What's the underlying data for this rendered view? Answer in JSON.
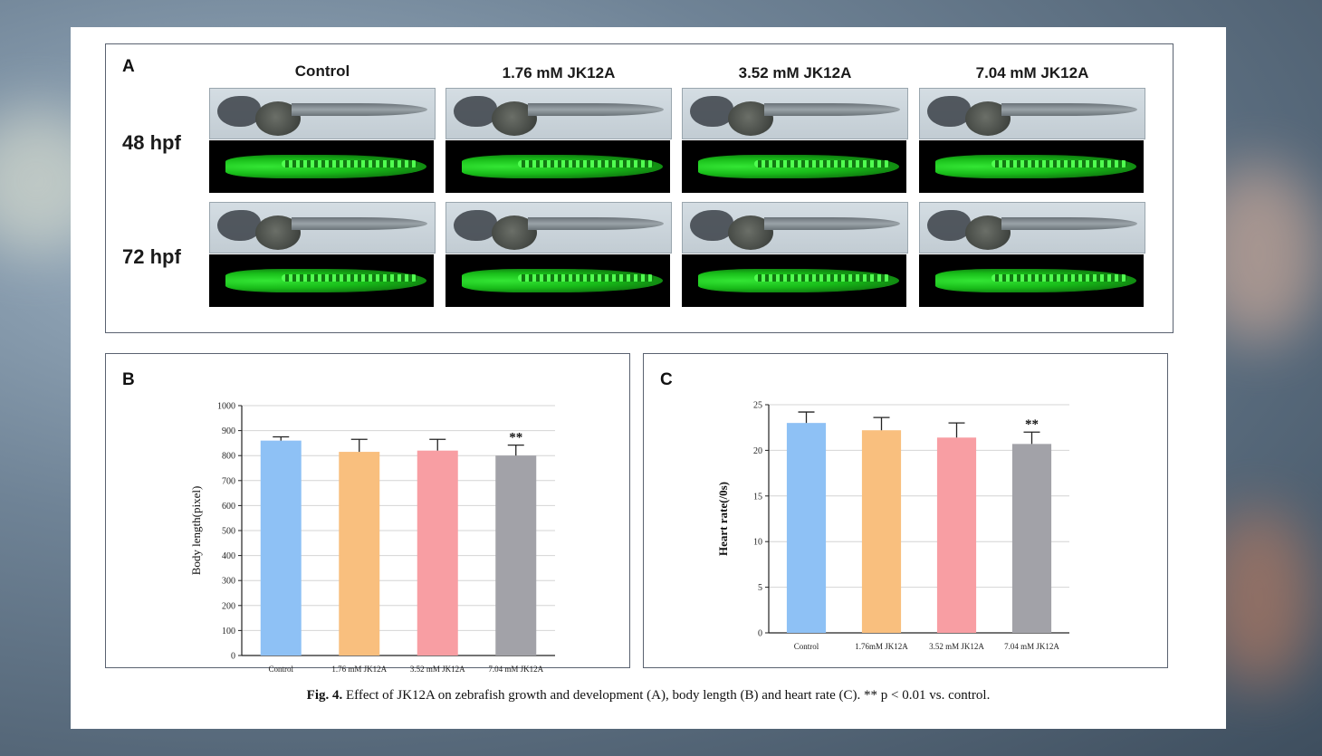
{
  "figure": {
    "panel_a": {
      "letter": "A",
      "columns": [
        "Control",
        "1.76 mM JK12A",
        "3.52 mM JK12A",
        "7.04 mM JK12A"
      ],
      "rows": [
        "48 hpf",
        "72 hpf"
      ]
    },
    "panel_b": {
      "letter": "B"
    },
    "panel_c": {
      "letter": "C"
    },
    "caption": {
      "label": "Fig. 4.",
      "text": "Effect of JK12A on zebrafish growth and development (A), body length (B) and heart rate (C). ** p < 0.01 vs. control."
    }
  },
  "chart_data": [
    {
      "type": "bar",
      "panel": "B",
      "categories": [
        "Control",
        "1.76 mM JK12A",
        "3.52 mM JK12A",
        "7.04 mM JK12A"
      ],
      "values": [
        860,
        815,
        820,
        800
      ],
      "errors": [
        15,
        50,
        45,
        42
      ],
      "significance": [
        "",
        "",
        "",
        "**"
      ],
      "colors": [
        "#8ec1f5",
        "#f9bf7e",
        "#f89ea3",
        "#a2a2a8"
      ],
      "xlabel": "",
      "ylabel": "Body length(pixel)",
      "ylim": [
        0,
        1000
      ],
      "yticks": [
        0,
        100,
        200,
        300,
        400,
        500,
        600,
        700,
        800,
        900,
        1000
      ],
      "grid": true
    },
    {
      "type": "bar",
      "panel": "C",
      "categories": [
        "Control",
        "1.76mM JK12A",
        "3.52 mM JK12A",
        "7.04 mM JK12A"
      ],
      "values": [
        23.0,
        22.2,
        21.4,
        20.7
      ],
      "errors": [
        1.2,
        1.4,
        1.6,
        1.3
      ],
      "significance": [
        "",
        "",
        "",
        "**"
      ],
      "colors": [
        "#8ec1f5",
        "#f9bf7e",
        "#f89ea3",
        "#a2a2a8"
      ],
      "xlabel": "",
      "ylabel": "Heart rate(/0s)",
      "ylim": [
        0,
        25
      ],
      "yticks": [
        0,
        5,
        10,
        15,
        20,
        25
      ],
      "grid": true
    }
  ]
}
